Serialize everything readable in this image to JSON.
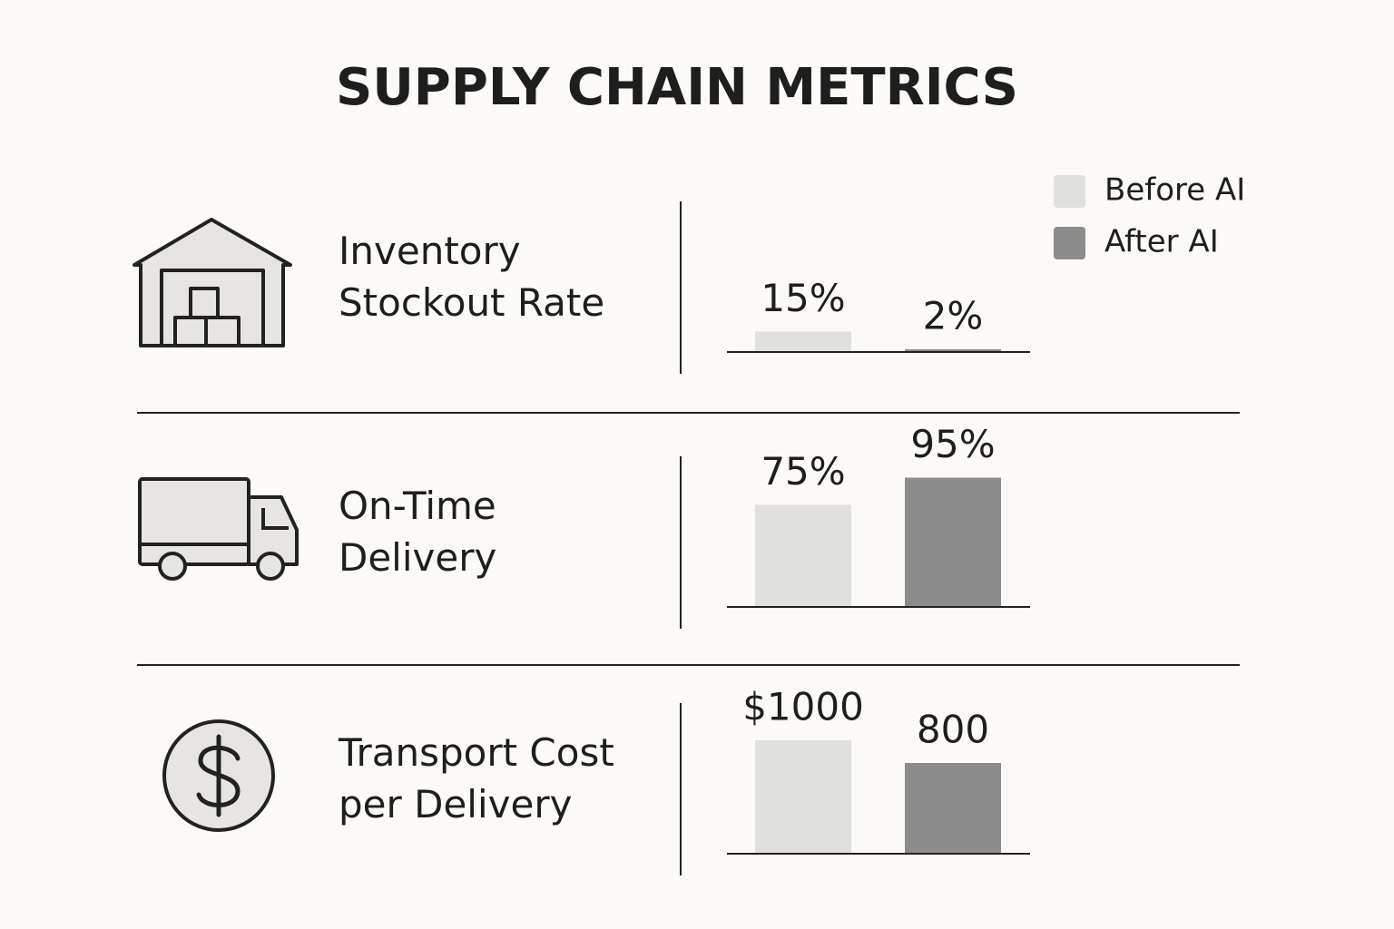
{
  "title": "SUPPLY CHAIN METRICS",
  "legend": [
    {
      "name": "Before AI",
      "color": "#e0e0dc"
    },
    {
      "name": "After AI",
      "color": "#8c8c8c"
    }
  ],
  "chart_data": [
    {
      "type": "bar",
      "title": [
        "Inventory",
        "Stockout Rate"
      ],
      "values": [
        15,
        2
      ],
      "value_labels": [
        "15%",
        "2%"
      ],
      "ylim": [
        0,
        100
      ]
    },
    {
      "type": "bar",
      "title": [
        "On-Time",
        "Delivery"
      ],
      "values": [
        75,
        95
      ],
      "value_labels": [
        "75%",
        "95%"
      ],
      "ylim": [
        0,
        100
      ]
    },
    {
      "type": "bar",
      "title": [
        "Transport Cost",
        "per Delivery"
      ],
      "values": [
        1000,
        800
      ],
      "value_labels": [
        "$1000",
        "800"
      ],
      "ylim": [
        0,
        1200
      ]
    }
  ]
}
